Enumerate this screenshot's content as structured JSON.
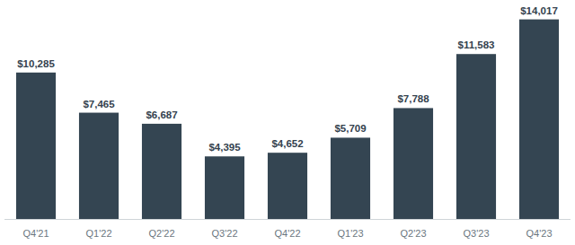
{
  "chart_data": {
    "type": "bar",
    "categories": [
      "Q4'21",
      "Q1'22",
      "Q2'22",
      "Q3'22",
      "Q4'22",
      "Q1'23",
      "Q2'23",
      "Q3'23",
      "Q4'23"
    ],
    "values": [
      10285,
      7465,
      6687,
      4395,
      4652,
      5709,
      7788,
      11583,
      14017
    ],
    "value_labels": [
      "$10,285",
      "$7,465",
      "$6,687",
      "$4,395",
      "$4,652",
      "$5,709",
      "$7,788",
      "$11,583",
      "$14,017"
    ],
    "color": "#344552",
    "ylim": [
      0,
      15000
    ],
    "data_labels": true,
    "tick_labels": "x",
    "grid": false
  }
}
